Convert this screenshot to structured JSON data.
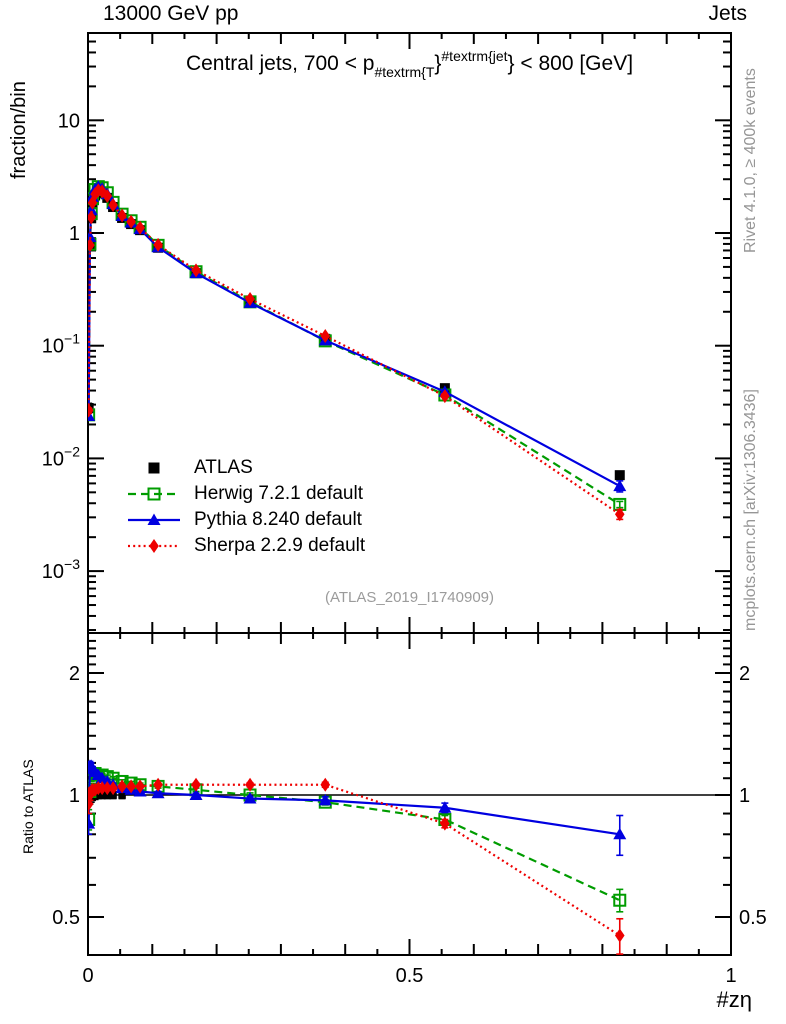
{
  "header": {
    "left_label": "13000 GeV pp",
    "right_label": "Jets"
  },
  "main_title": {
    "prefix": "Central jets, 700 < p",
    "sub": "#textrm{T",
    "mid_brace": "}",
    "sup": "#textrm{jet",
    "close_brace": "}",
    "suffix": " < 800 [GeV]"
  },
  "watermark": "(ATLAS_2019_I1740909)",
  "side_notes": {
    "top_rotated": "Rivet 4.1.0, ≥ 400k events",
    "bottom_rotated": "mcplots.cern.ch [arXiv:1306.3436]"
  },
  "palette": {
    "muted_gray": "#969696",
    "frame_black": "#000000"
  },
  "chart_data": {
    "type": "line",
    "title": "Central jets, 700 < p_{#textrm{T}}^{#textrm{jet}} < 800 [GeV]",
    "xlabel": "#zη",
    "ylabel": "fraction/bin",
    "ratio_ylabel": "Ratio to ATLAS",
    "panels": [
      "main (log y)",
      "ratio to ATLAS (log y)"
    ],
    "x_range": [
      0,
      1
    ],
    "y_main_log_range": [
      0.000285,
      59
    ],
    "y_ratio_log_range": [
      0.403,
      2.52
    ],
    "legend_position": "upper-left-inside",
    "grid": false,
    "x": [
      0.001,
      0.003,
      0.005,
      0.007,
      0.011,
      0.016,
      0.022,
      0.03,
      0.039,
      0.053,
      0.067,
      0.081,
      0.109,
      0.168,
      0.252,
      0.369,
      0.555,
      0.827
    ],
    "series": [
      {
        "name": "ATLAS",
        "role": "data",
        "color": "#000000",
        "marker": "square-filled",
        "line": "none",
        "values": [
          0.028,
          0.78,
          1.35,
          1.8,
          2.15,
          2.3,
          2.25,
          2.05,
          1.7,
          1.36,
          1.2,
          1.06,
          0.74,
          0.44,
          0.245,
          0.115,
          0.042,
          0.0071
        ],
        "err_frac": [
          0.1,
          0.05,
          0.04,
          0.03,
          0.025,
          0.02,
          0.02,
          0.02,
          0.02,
          0.02,
          0.02,
          0.02,
          0.02,
          0.02,
          0.02,
          0.025,
          0.04,
          0.07
        ]
      },
      {
        "name": "Herwig 7.2.1 default",
        "role": "mc",
        "color": "#009c00",
        "marker": "square-open",
        "line": "dashed",
        "ratio": [
          0.87,
          1.02,
          1.1,
          1.12,
          1.13,
          1.12,
          1.12,
          1.11,
          1.1,
          1.08,
          1.07,
          1.06,
          1.05,
          1.03,
          1.0,
          0.96,
          0.87,
          0.55
        ],
        "ratio_err": [
          0.05,
          0.03,
          0.02,
          0.015,
          0.012,
          0.01,
          0.01,
          0.01,
          0.01,
          0.01,
          0.01,
          0.01,
          0.01,
          0.01,
          0.012,
          0.015,
          0.02,
          0.035
        ]
      },
      {
        "name": "Pythia 8.240 default",
        "role": "mc",
        "color": "#0000e0",
        "marker": "triangle-filled",
        "line": "solid",
        "ratio": [
          0.85,
          1.18,
          1.18,
          1.16,
          1.14,
          1.12,
          1.1,
          1.08,
          1.06,
          1.04,
          1.03,
          1.02,
          1.01,
          1.0,
          0.98,
          0.97,
          0.93,
          0.8
        ],
        "ratio_err": [
          0.05,
          0.03,
          0.02,
          0.015,
          0.012,
          0.01,
          0.01,
          0.01,
          0.01,
          0.01,
          0.01,
          0.01,
          0.01,
          0.01,
          0.012,
          0.02,
          0.025,
          0.09
        ]
      },
      {
        "name": "Sherpa 2.2.9 default",
        "role": "mc",
        "color": "#ee0000",
        "marker": "diamond-filled",
        "line": "dotted",
        "ratio": [
          0.95,
          1.0,
          1.02,
          1.03,
          1.03,
          1.04,
          1.04,
          1.04,
          1.04,
          1.05,
          1.05,
          1.05,
          1.06,
          1.06,
          1.06,
          1.06,
          0.85,
          0.45
        ],
        "ratio_err": [
          0.05,
          0.03,
          0.02,
          0.015,
          0.012,
          0.01,
          0.01,
          0.01,
          0.01,
          0.01,
          0.01,
          0.01,
          0.01,
          0.01,
          0.012,
          0.015,
          0.02,
          0.045
        ]
      }
    ],
    "x_ticks": [
      {
        "v": 0,
        "label": "0"
      },
      {
        "v": 0.5,
        "label": "0.5"
      },
      {
        "v": 1,
        "label": "1"
      }
    ],
    "y_ticks_main": [
      {
        "v": 10,
        "mant": "10",
        "exp": ""
      },
      {
        "v": 1,
        "mant": "1",
        "exp": ""
      },
      {
        "v": 0.1,
        "mant": "10",
        "exp": "−1"
      },
      {
        "v": 0.01,
        "mant": "10",
        "exp": "−2"
      },
      {
        "v": 0.001,
        "mant": "10",
        "exp": "−3"
      }
    ],
    "y_ticks_ratio": [
      {
        "v": 0.5,
        "label": "0.5"
      },
      {
        "v": 1,
        "label": "1"
      },
      {
        "v": 2,
        "label": "2"
      }
    ]
  }
}
